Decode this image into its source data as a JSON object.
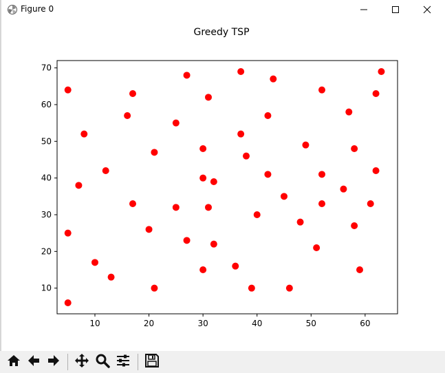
{
  "window": {
    "title": "Figure 0",
    "icons": [
      "matplotlib-logo-icon",
      "minimize-icon",
      "maximize-icon",
      "close-icon"
    ]
  },
  "toolbar": {
    "buttons": [
      "home-icon",
      "back-arrow-icon",
      "forward-arrow-icon",
      "pan-icon",
      "zoom-icon",
      "configure-subplots-icon",
      "save-icon"
    ]
  },
  "chart_data": {
    "type": "scatter",
    "title": "Greedy TSP",
    "xlabel": "",
    "ylabel": "",
    "xlim": [
      3,
      66
    ],
    "ylim": [
      3,
      72
    ],
    "xticks": [
      10,
      20,
      30,
      40,
      50,
      60
    ],
    "yticks": [
      10,
      20,
      30,
      40,
      50,
      60,
      70
    ],
    "grid": false,
    "marker_color": "#ff0000",
    "x": [
      5,
      5,
      5,
      7,
      8,
      10,
      12,
      13,
      16,
      17,
      17,
      20,
      21,
      21,
      25,
      25,
      27,
      27,
      30,
      30,
      30,
      31,
      31,
      32,
      32,
      36,
      37,
      37,
      38,
      39,
      40,
      42,
      42,
      43,
      45,
      46,
      48,
      49,
      51,
      52,
      52,
      52,
      56,
      57,
      58,
      58,
      59,
      61,
      62,
      62,
      63
    ],
    "y": [
      64,
      25,
      6,
      38,
      52,
      17,
      42,
      13,
      57,
      63,
      33,
      26,
      47,
      10,
      55,
      32,
      68,
      23,
      48,
      40,
      15,
      62,
      32,
      39,
      22,
      16,
      69,
      52,
      46,
      10,
      30,
      57,
      41,
      67,
      35,
      10,
      28,
      49,
      21,
      64,
      41,
      33,
      37,
      58,
      48,
      27,
      15,
      33,
      63,
      42,
      69
    ]
  }
}
